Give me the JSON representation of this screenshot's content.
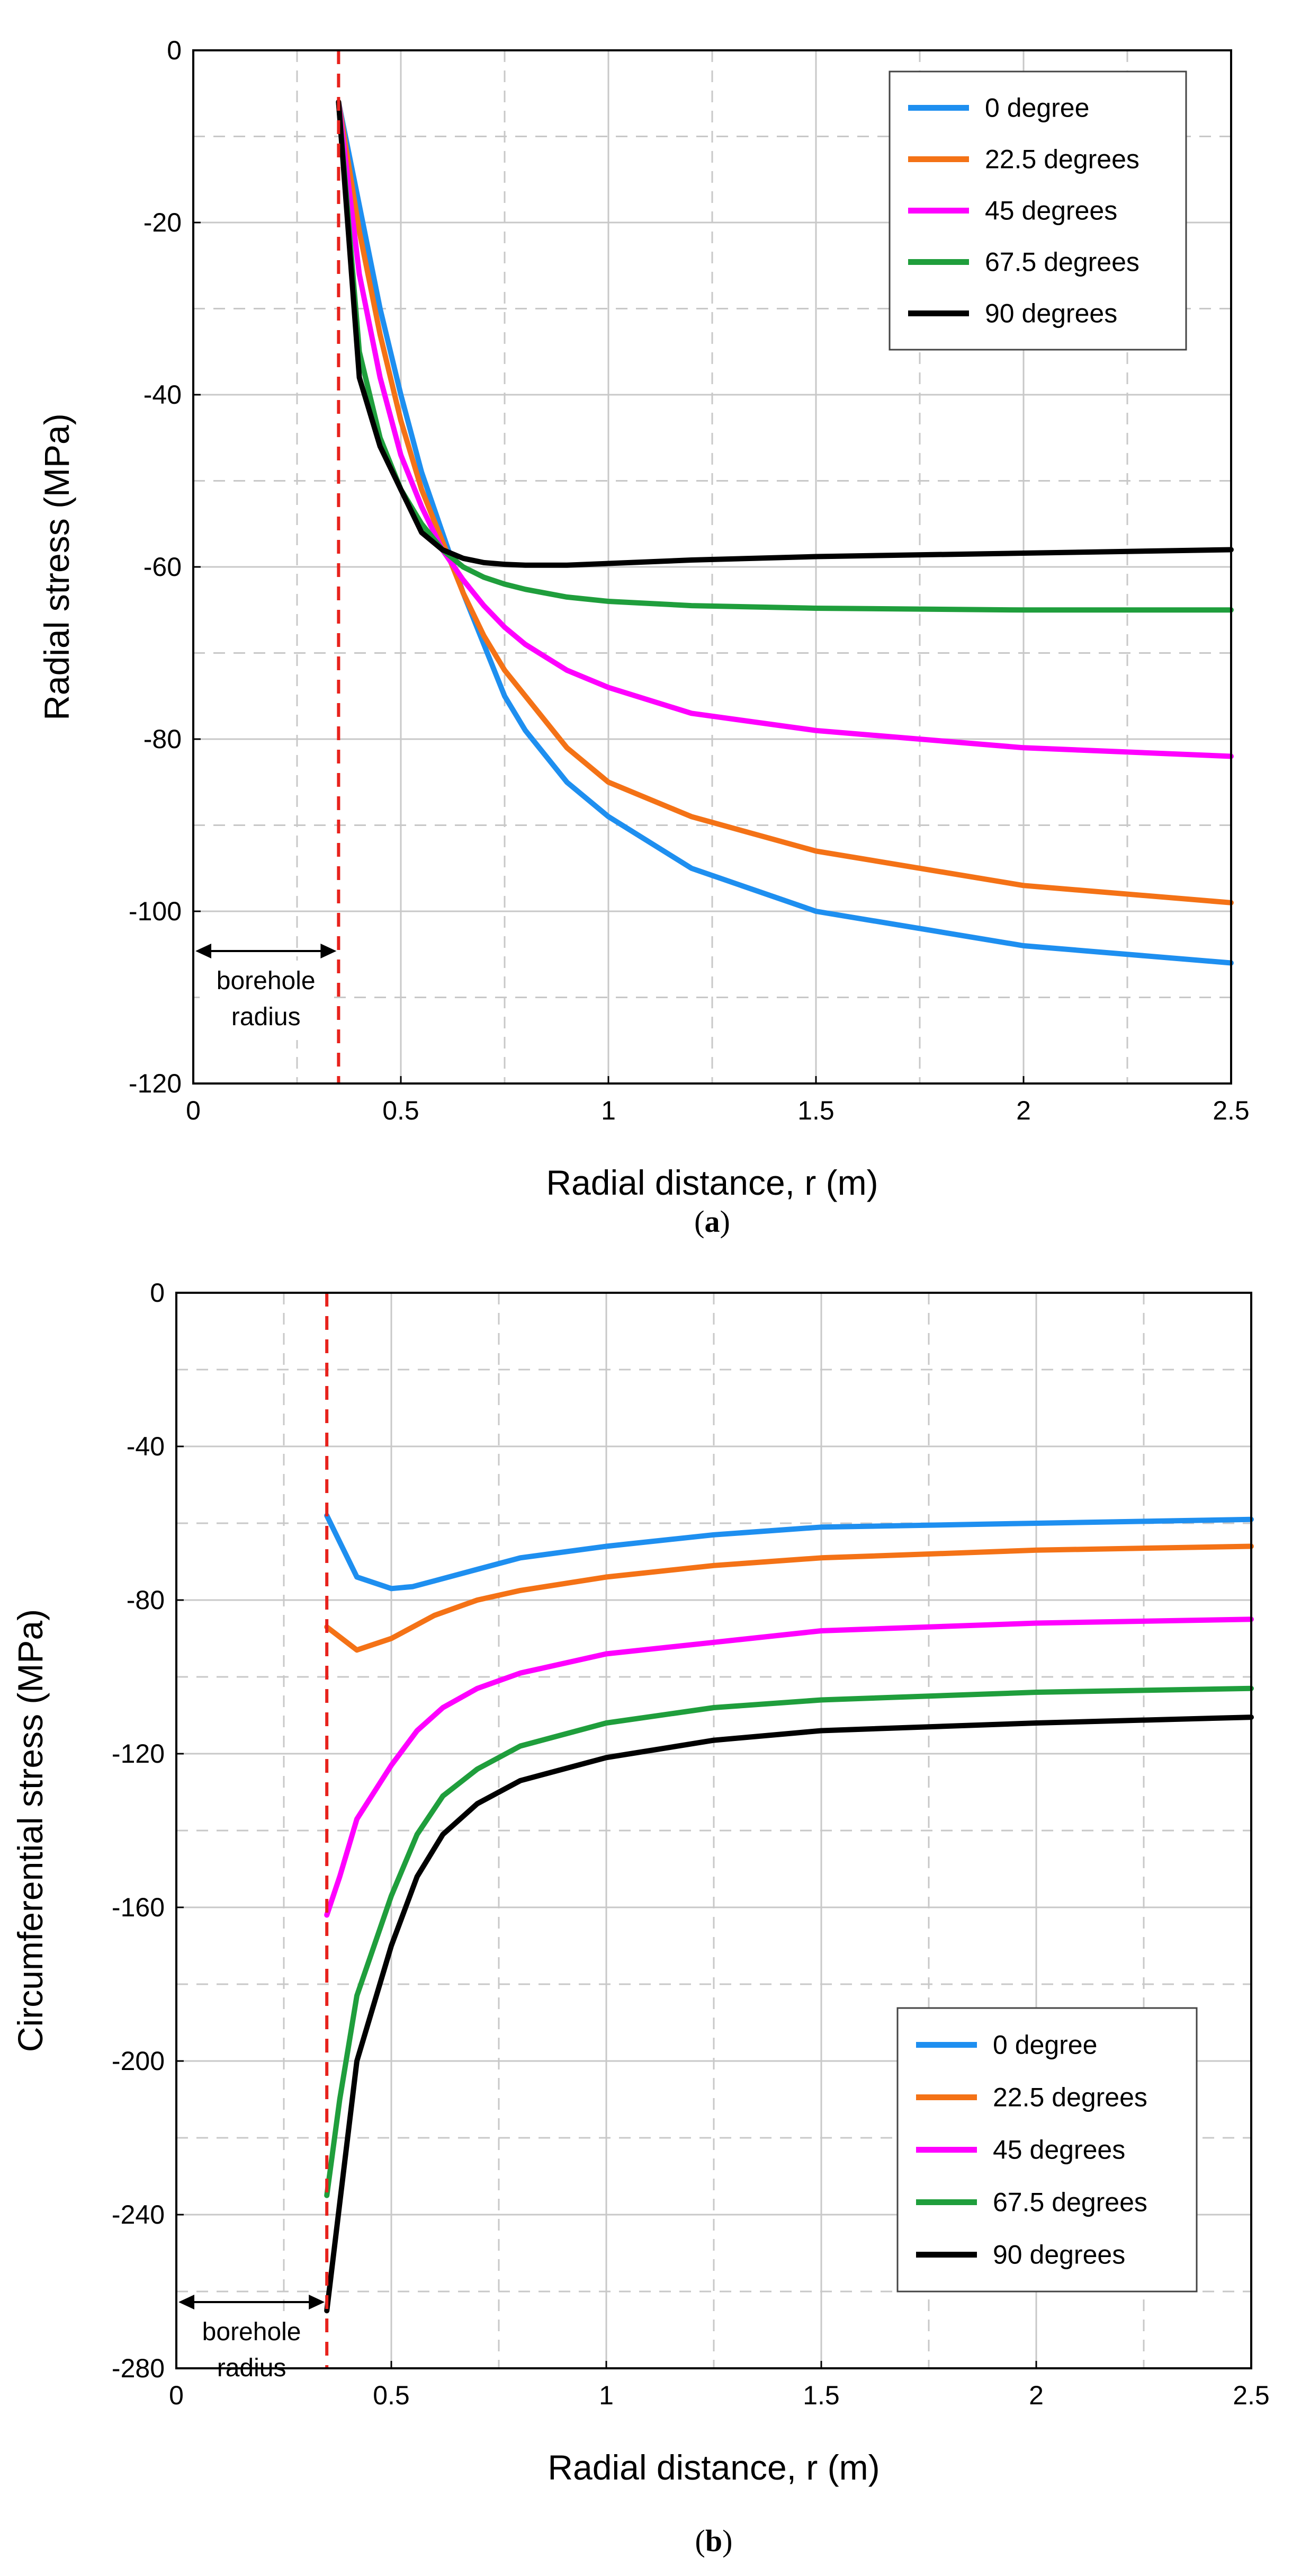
{
  "chart_data": [
    {
      "type": "line",
      "panel": "a",
      "caption": "a",
      "xlabel": "Radial distance, r (m)",
      "ylabel": "Radial stress (MPa)",
      "xlim": [
        0,
        2.5
      ],
      "ylim": [
        -120,
        0
      ],
      "xticks": [
        0,
        0.5,
        1,
        1.5,
        2,
        2.5
      ],
      "xtick_labels": [
        "0",
        "0.5",
        "1",
        "1.5",
        "2",
        "2.5"
      ],
      "yticks": [
        0,
        -20,
        -40,
        -60,
        -80,
        -100,
        -120
      ],
      "ytick_labels": [
        "0",
        "-20",
        "-40",
        "-60",
        "-80",
        "-100",
        "-120"
      ],
      "borehole_radius": 0.35,
      "annotation": [
        "borehole",
        "radius"
      ],
      "legend_position": "top-right",
      "series": [
        {
          "name": "0 degree",
          "color": "#1e8ff0",
          "x": [
            0.35,
            0.4,
            0.45,
            0.5,
            0.55,
            0.6,
            0.65,
            0.7,
            0.75,
            0.8,
            0.9,
            1.0,
            1.2,
            1.5,
            2.0,
            2.5
          ],
          "y": [
            -6,
            -18,
            -30,
            -40,
            -49,
            -56,
            -63,
            -69,
            -75,
            -79,
            -85,
            -89,
            -95,
            -100,
            -104,
            -106
          ]
        },
        {
          "name": "22.5 degrees",
          "color": "#f47216",
          "x": [
            0.35,
            0.4,
            0.45,
            0.5,
            0.55,
            0.6,
            0.65,
            0.7,
            0.75,
            0.8,
            0.9,
            1.0,
            1.2,
            1.5,
            2.0,
            2.5
          ],
          "y": [
            -6,
            -21,
            -33,
            -43,
            -51,
            -57,
            -63,
            -68,
            -72,
            -75,
            -81,
            -85,
            -89,
            -93,
            -97,
            -99
          ]
        },
        {
          "name": "45 degrees",
          "color": "#ff00ff",
          "x": [
            0.35,
            0.4,
            0.45,
            0.5,
            0.55,
            0.6,
            0.65,
            0.7,
            0.75,
            0.8,
            0.9,
            1.0,
            1.2,
            1.5,
            2.0,
            2.5
          ],
          "y": [
            -6,
            -26,
            -38,
            -47,
            -53,
            -58,
            -61.5,
            -64.5,
            -67,
            -69,
            -72,
            -74,
            -77,
            -79,
            -81,
            -82
          ]
        },
        {
          "name": "67.5 degrees",
          "color": "#1f9e3c",
          "x": [
            0.35,
            0.4,
            0.45,
            0.5,
            0.55,
            0.6,
            0.65,
            0.7,
            0.75,
            0.8,
            0.9,
            1.0,
            1.2,
            1.5,
            2.0,
            2.5
          ],
          "y": [
            -6,
            -35,
            -45,
            -51,
            -55,
            -58,
            -60,
            -61.2,
            -62,
            -62.6,
            -63.5,
            -64,
            -64.5,
            -64.8,
            -65,
            -65
          ]
        },
        {
          "name": "90 degrees",
          "color": "#000000",
          "x": [
            0.35,
            0.4,
            0.45,
            0.5,
            0.55,
            0.6,
            0.65,
            0.7,
            0.75,
            0.8,
            0.9,
            1.0,
            1.2,
            1.5,
            2.0,
            2.5
          ],
          "y": [
            -6,
            -38,
            -46,
            -51,
            -56,
            -58,
            -59,
            -59.5,
            -59.7,
            -59.8,
            -59.8,
            -59.6,
            -59.2,
            -58.8,
            -58.4,
            -58
          ]
        }
      ]
    },
    {
      "type": "line",
      "panel": "b",
      "caption": "b",
      "xlabel": "Radial distance, r (m)",
      "ylabel": "Circumferential stress (MPa)",
      "xlim": [
        0,
        2.5
      ],
      "ylim": [
        -280,
        0
      ],
      "xticks": [
        0,
        0.5,
        1,
        1.5,
        2,
        2.5
      ],
      "xtick_labels": [
        "0",
        "0.5",
        "1",
        "1.5",
        "2",
        "2.5"
      ],
      "yticks": [
        0,
        -40,
        -80,
        -120,
        -160,
        -200,
        -240,
        -280
      ],
      "ytick_labels": [
        "0",
        "-40",
        "-80",
        "-120",
        "-160",
        "-200",
        "-240",
        "-280"
      ],
      "borehole_radius": 0.35,
      "annotation": [
        "borehole",
        "radius"
      ],
      "legend_position": "bottom-right",
      "series": [
        {
          "name": "0 degree",
          "color": "#1e8ff0",
          "x": [
            0.35,
            0.42,
            0.5,
            0.55,
            0.6,
            0.7,
            0.8,
            1.0,
            1.25,
            1.5,
            2.0,
            2.5
          ],
          "y": [
            -58,
            -74,
            -77,
            -76.5,
            -75,
            -72,
            -69,
            -66,
            -63,
            -61,
            -60,
            -59
          ]
        },
        {
          "name": "22.5 degrees",
          "color": "#f47216",
          "x": [
            0.35,
            0.42,
            0.5,
            0.55,
            0.6,
            0.7,
            0.8,
            1.0,
            1.25,
            1.5,
            2.0,
            2.5
          ],
          "y": [
            -87,
            -93,
            -90,
            -87,
            -84,
            -80,
            -77.5,
            -74,
            -71,
            -69,
            -67,
            -66
          ]
        },
        {
          "name": "45 degrees",
          "color": "#ff00ff",
          "x": [
            0.35,
            0.38,
            0.42,
            0.5,
            0.56,
            0.62,
            0.7,
            0.8,
            1.0,
            1.25,
            1.5,
            2.0,
            2.5
          ],
          "y": [
            -162,
            -152,
            -137,
            -123,
            -114,
            -108,
            -103,
            -99,
            -94,
            -91,
            -88,
            -86,
            -85
          ]
        },
        {
          "name": "67.5 degrees",
          "color": "#1f9e3c",
          "x": [
            0.35,
            0.38,
            0.42,
            0.5,
            0.56,
            0.62,
            0.7,
            0.8,
            1.0,
            1.25,
            1.5,
            2.0,
            2.5
          ],
          "y": [
            -235,
            -210,
            -183,
            -157,
            -141,
            -131,
            -124,
            -118,
            -112,
            -108,
            -106,
            -104,
            -103
          ]
        },
        {
          "name": "90 degrees",
          "color": "#000000",
          "x": [
            0.35,
            0.38,
            0.42,
            0.5,
            0.56,
            0.62,
            0.7,
            0.8,
            1.0,
            1.25,
            1.5,
            2.0,
            2.5
          ],
          "y": [
            -265,
            -237,
            -200,
            -170,
            -152,
            -141,
            -133,
            -127,
            -121,
            -116.5,
            -114,
            -112,
            -110.5
          ]
        }
      ]
    }
  ]
}
